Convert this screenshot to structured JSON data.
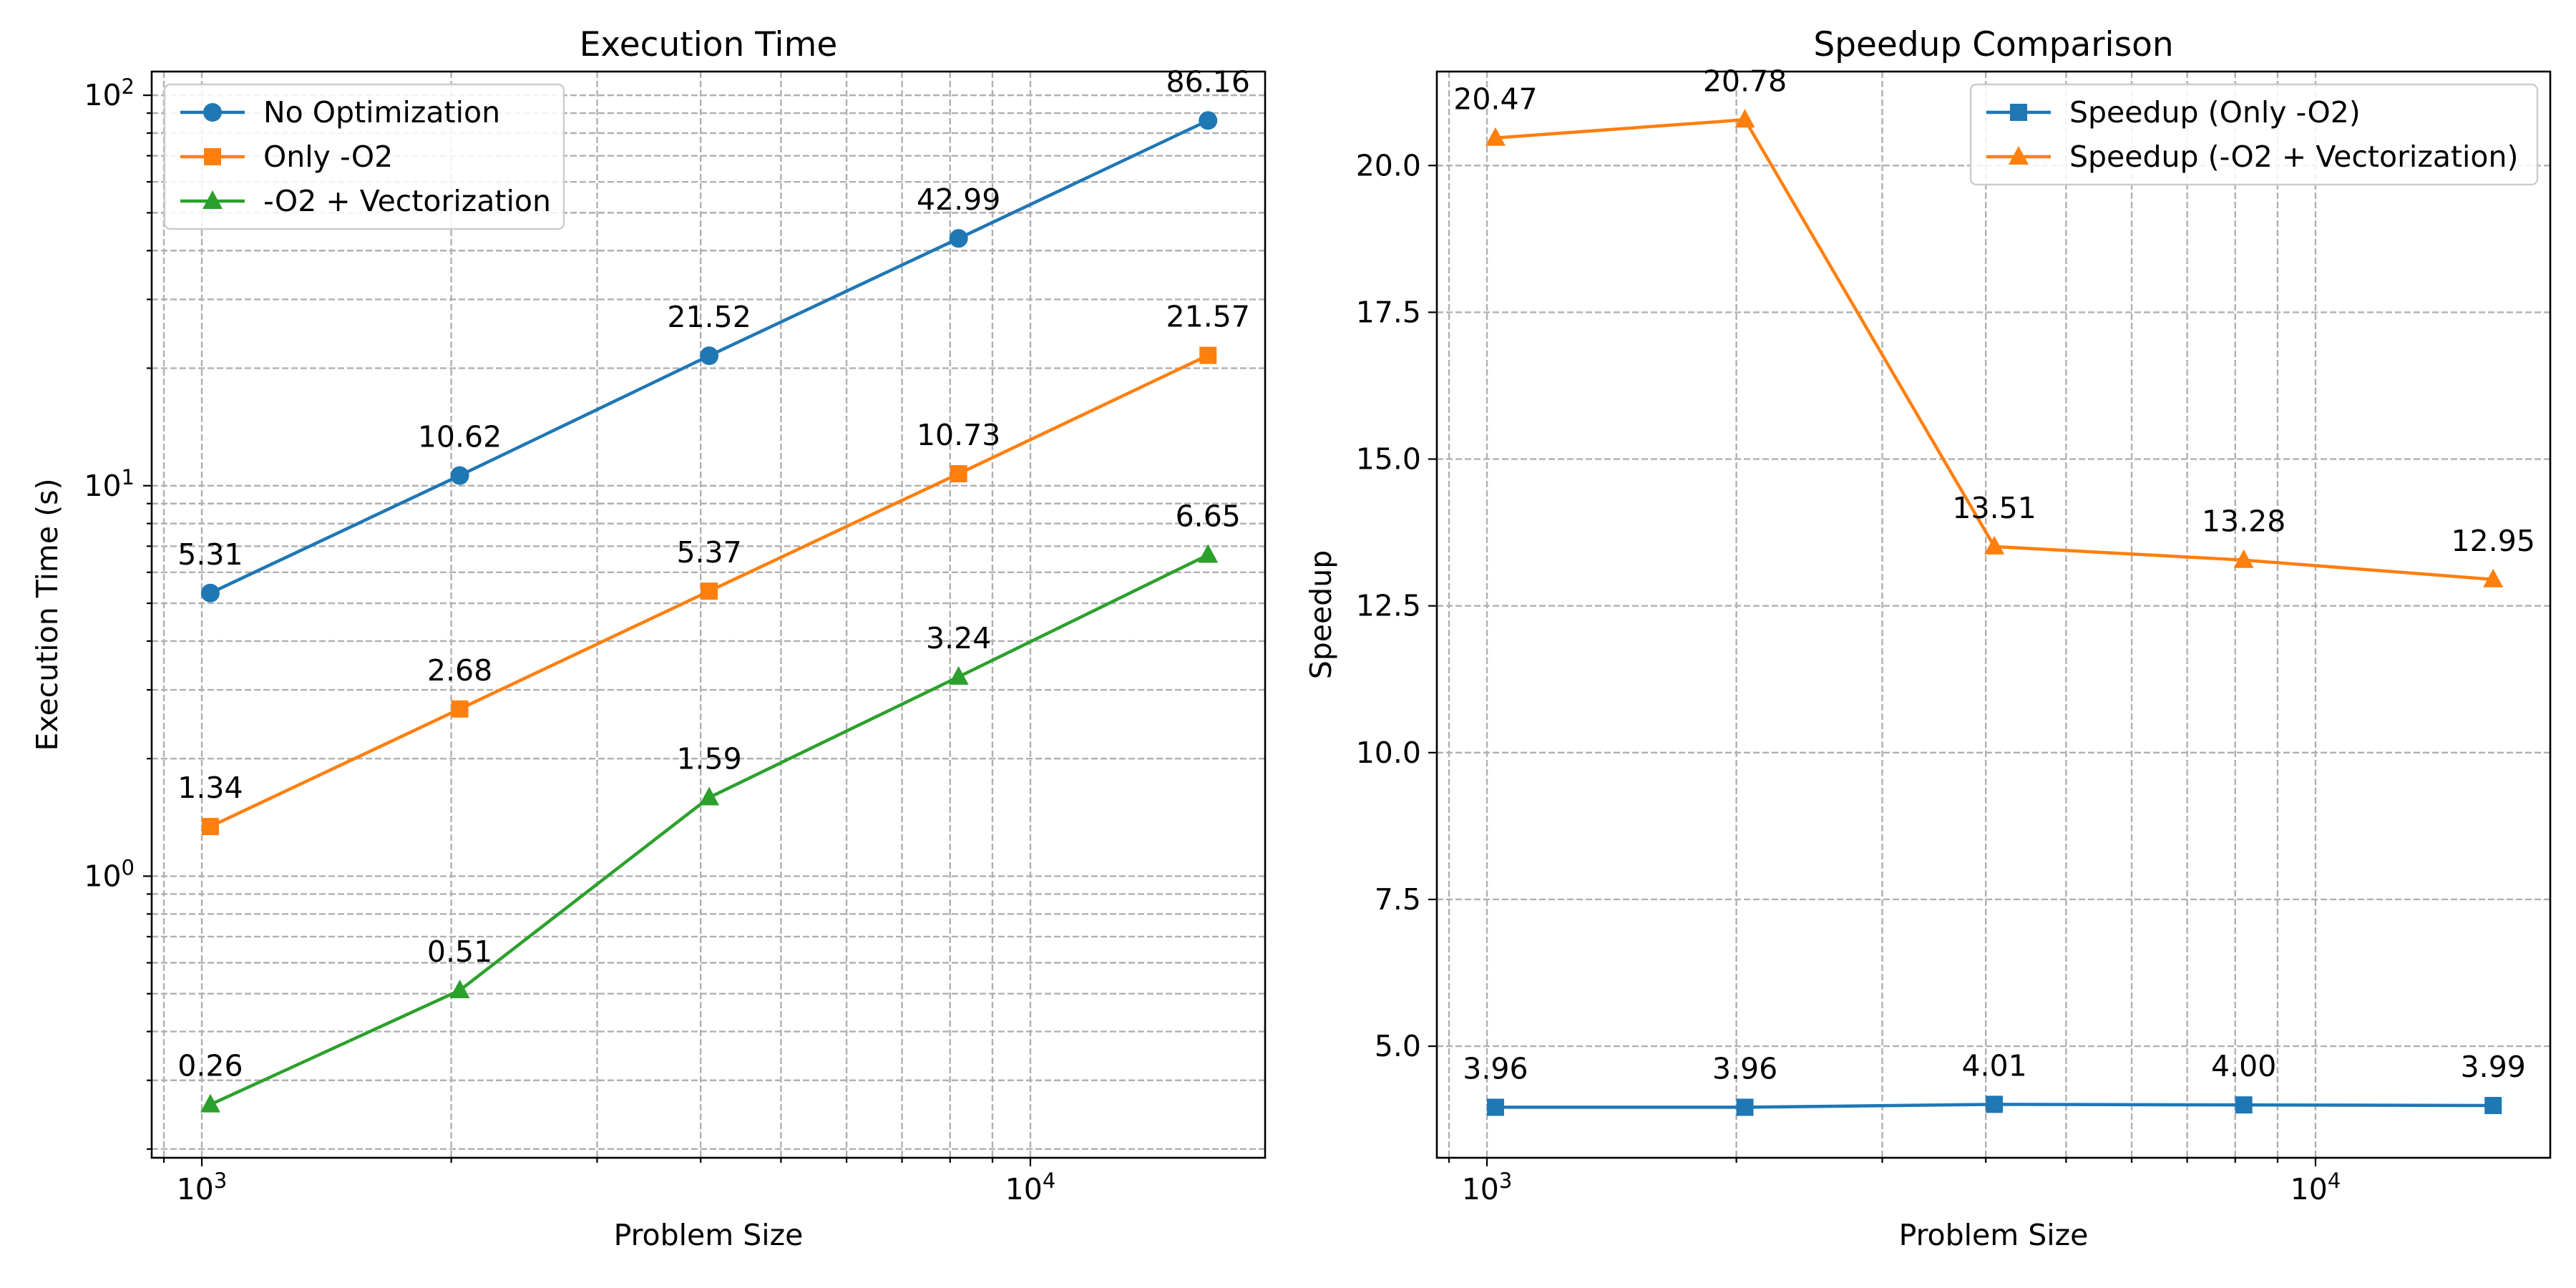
{
  "chart_data": [
    {
      "type": "line",
      "title": "Execution Time",
      "xlabel": "Problem Size",
      "ylabel": "Execution Time (s)",
      "xscale": "log",
      "yscale": "log",
      "xlim": [
        870,
        19200
      ],
      "ylim": [
        0.19,
        115
      ],
      "x": [
        1024,
        2048,
        4096,
        8192,
        16384
      ],
      "x_ticks": [
        {
          "value": 1000,
          "base": "10",
          "exp": "3"
        },
        {
          "value": 10000,
          "base": "10",
          "exp": "4"
        }
      ],
      "y_ticks": [
        {
          "value": 1,
          "base": "10",
          "exp": "0"
        },
        {
          "value": 10,
          "base": "10",
          "exp": "1"
        },
        {
          "value": 100,
          "base": "10",
          "exp": "2"
        }
      ],
      "grid": true,
      "legend_position": "upper left",
      "series": [
        {
          "name": "No Optimization",
          "color": "#1f77b4",
          "marker": "circle",
          "values": [
            5.31,
            10.62,
            21.52,
            42.99,
            86.16
          ],
          "labels": [
            "5.31",
            "10.62",
            "21.52",
            "42.99",
            "86.16"
          ]
        },
        {
          "name": "Only -O2",
          "color": "#ff7f0e",
          "marker": "square",
          "values": [
            1.34,
            2.68,
            5.37,
            10.73,
            21.57
          ],
          "labels": [
            "1.34",
            "2.68",
            "5.37",
            "10.73",
            "21.57"
          ]
        },
        {
          "name": "-O2 + Vectorization",
          "color": "#2ca02c",
          "marker": "triangle",
          "values": [
            0.26,
            0.51,
            1.59,
            3.24,
            6.65
          ],
          "labels": [
            "0.26",
            "0.51",
            "1.59",
            "3.24",
            "6.65"
          ]
        }
      ]
    },
    {
      "type": "line",
      "title": "Speedup Comparison",
      "xlabel": "Problem Size",
      "ylabel": "Speedup",
      "xscale": "log",
      "yscale": "linear",
      "xlim": [
        870,
        19200
      ],
      "ylim": [
        3.1,
        21.6
      ],
      "x": [
        1024,
        2048,
        4096,
        8192,
        16384
      ],
      "x_ticks": [
        {
          "value": 1000,
          "base": "10",
          "exp": "3"
        },
        {
          "value": 10000,
          "base": "10",
          "exp": "4"
        }
      ],
      "y_ticks": [
        {
          "value": 5,
          "label": "5.0"
        },
        {
          "value": 7.5,
          "label": "7.5"
        },
        {
          "value": 10,
          "label": "10.0"
        },
        {
          "value": 12.5,
          "label": "12.5"
        },
        {
          "value": 15,
          "label": "15.0"
        },
        {
          "value": 17.5,
          "label": "17.5"
        },
        {
          "value": 20,
          "label": "20.0"
        }
      ],
      "grid": true,
      "legend_position": "upper right",
      "series": [
        {
          "name": "Speedup (Only -O2)",
          "color": "#1f77b4",
          "marker": "square",
          "values": [
            3.96,
            3.96,
            4.01,
            4.0,
            3.99
          ],
          "labels": [
            "3.96",
            "3.96",
            "4.01",
            "4.00",
            "3.99"
          ]
        },
        {
          "name": "Speedup (-O2 + Vectorization)",
          "color": "#ff7f0e",
          "marker": "triangle",
          "values": [
            20.47,
            20.78,
            13.51,
            13.28,
            12.95
          ],
          "labels": [
            "20.47",
            "20.78",
            "13.51",
            "13.28",
            "12.95"
          ]
        }
      ]
    }
  ]
}
